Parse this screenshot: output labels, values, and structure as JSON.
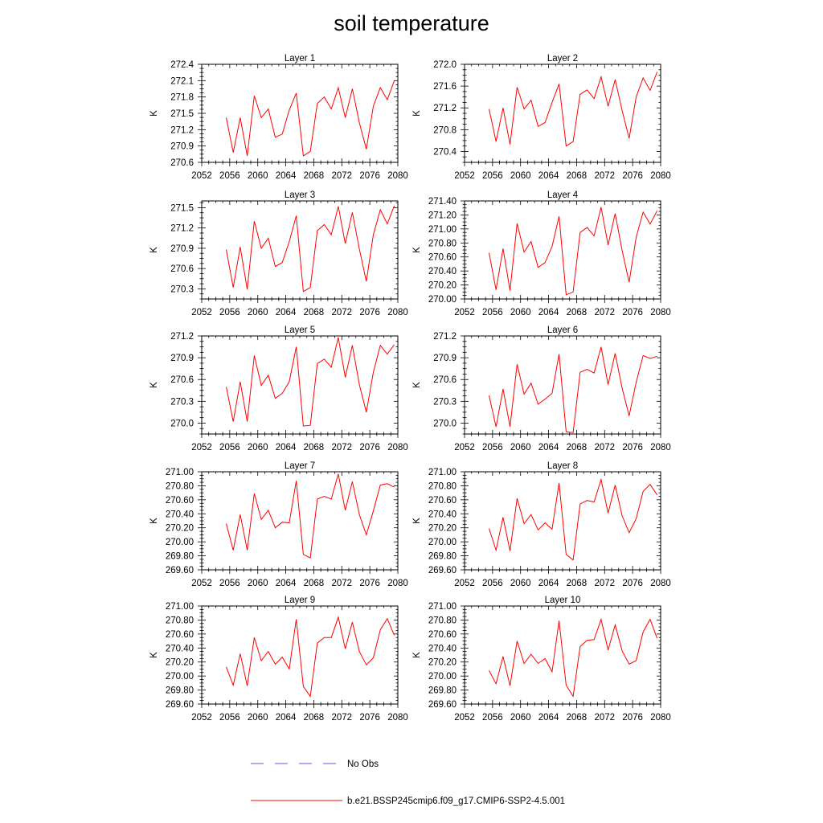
{
  "title": "soil temperature",
  "chart_data": {
    "type": "line",
    "title": "soil temperature",
    "x": [
      2055.5,
      2056.5,
      2057.5,
      2058.5,
      2059.5,
      2060.5,
      2061.5,
      2062.5,
      2063.5,
      2064.5,
      2065.5,
      2066.5,
      2067.5,
      2068.5,
      2069.5,
      2070.5,
      2071.5,
      2072.5,
      2073.5,
      2074.5,
      2075.5,
      2076.5,
      2077.5,
      2078.5,
      2079.5
    ],
    "xlim": [
      2052,
      2080
    ],
    "xticks": [
      "2052",
      "2056",
      "2060",
      "2064",
      "2068",
      "2072",
      "2076",
      "2080"
    ],
    "legend": [
      {
        "label": "No Obs",
        "color": "#5a5aff",
        "style": "dashed"
      },
      {
        "label": "b.e21.BSSP245cmip6.f09_g17.CMIP6-SSP2-4.5.001",
        "color": "#ff0000",
        "style": "solid"
      }
    ],
    "panels": [
      {
        "name": "Layer 1",
        "ylabel": "K",
        "ylim": [
          270.6,
          272.4
        ],
        "yticks": [
          "270.6",
          "270.9",
          "271.2",
          "271.5",
          "271.8",
          "272.1",
          "272.4"
        ],
        "values": [
          271.42,
          270.78,
          271.42,
          270.72,
          271.82,
          271.42,
          271.58,
          271.06,
          271.12,
          271.56,
          271.87,
          270.72,
          270.8,
          271.68,
          271.8,
          271.58,
          271.97,
          271.42,
          271.95,
          271.33,
          270.84,
          271.63,
          271.97,
          271.75,
          272.1
        ]
      },
      {
        "name": "Layer 2",
        "ylabel": "K",
        "ylim": [
          270.2,
          272.0
        ],
        "yticks": [
          "270.4",
          "270.8",
          "271.2",
          "271.6",
          "272.0"
        ],
        "values": [
          271.18,
          270.58,
          271.2,
          270.53,
          271.58,
          271.18,
          271.34,
          270.86,
          270.93,
          271.3,
          271.64,
          270.5,
          270.58,
          271.45,
          271.53,
          271.37,
          271.77,
          271.23,
          271.72,
          271.15,
          270.64,
          271.4,
          271.75,
          271.52,
          271.86
        ]
      },
      {
        "name": "Layer 3",
        "ylabel": "K",
        "ylim": [
          270.15,
          271.6
        ],
        "yticks": [
          "270.3",
          "270.6",
          "270.9",
          "271.2",
          "271.5"
        ],
        "values": [
          270.88,
          270.32,
          270.92,
          270.29,
          271.3,
          270.9,
          271.05,
          270.63,
          270.69,
          271.0,
          271.38,
          270.26,
          270.32,
          271.16,
          271.25,
          271.1,
          271.52,
          270.97,
          271.43,
          270.89,
          270.41,
          271.1,
          271.47,
          271.26,
          271.53
        ]
      },
      {
        "name": "Layer 4",
        "ylabel": "K",
        "ylim": [
          270.0,
          271.4
        ],
        "yticks": [
          "270.00",
          "270.20",
          "270.40",
          "270.60",
          "270.80",
          "271.00",
          "271.20",
          "271.40"
        ],
        "values": [
          270.66,
          270.13,
          270.72,
          270.12,
          271.08,
          270.67,
          270.82,
          270.45,
          270.52,
          270.75,
          271.18,
          270.06,
          270.1,
          270.95,
          271.02,
          270.9,
          271.31,
          270.77,
          271.22,
          270.69,
          270.24,
          270.88,
          271.24,
          271.07,
          271.26
        ]
      },
      {
        "name": "Layer 5",
        "ylabel": "K",
        "ylim": [
          269.85,
          271.2
        ],
        "yticks": [
          "270.0",
          "270.3",
          "270.6",
          "270.9",
          "271.2"
        ],
        "values": [
          270.5,
          270.02,
          270.57,
          270.02,
          270.93,
          270.52,
          270.66,
          270.34,
          270.41,
          270.57,
          271.05,
          269.96,
          269.97,
          270.82,
          270.88,
          270.77,
          271.18,
          270.63,
          271.07,
          270.53,
          270.15,
          270.7,
          271.07,
          270.95,
          271.08
        ]
      },
      {
        "name": "Layer 6",
        "ylabel": "K",
        "ylim": [
          269.85,
          271.2
        ],
        "yticks": [
          "270.0",
          "270.3",
          "270.6",
          "270.9",
          "271.2"
        ],
        "values": [
          270.38,
          269.95,
          270.47,
          269.95,
          270.81,
          270.4,
          270.55,
          270.26,
          270.33,
          270.41,
          270.95,
          269.88,
          269.87,
          270.7,
          270.74,
          270.69,
          271.05,
          270.53,
          270.96,
          270.48,
          270.1,
          270.56,
          270.93,
          270.89,
          270.92
        ]
      },
      {
        "name": "Layer 7",
        "ylabel": "K",
        "ylim": [
          269.6,
          271.0
        ],
        "yticks": [
          "269.60",
          "269.80",
          "270.00",
          "270.20",
          "270.40",
          "270.60",
          "270.80",
          "271.00"
        ],
        "values": [
          270.26,
          269.88,
          270.39,
          269.88,
          270.69,
          270.32,
          270.45,
          270.2,
          270.28,
          270.27,
          270.87,
          269.82,
          269.77,
          270.61,
          270.65,
          270.61,
          270.97,
          270.45,
          270.86,
          270.39,
          270.1,
          270.44,
          270.81,
          270.83,
          270.78
        ]
      },
      {
        "name": "Layer 8",
        "ylabel": "K",
        "ylim": [
          269.6,
          271.0
        ],
        "yticks": [
          "269.60",
          "269.80",
          "270.00",
          "270.20",
          "270.40",
          "270.60",
          "270.80",
          "271.00"
        ],
        "values": [
          270.19,
          269.88,
          270.35,
          269.87,
          270.62,
          270.26,
          270.39,
          270.17,
          270.27,
          270.18,
          270.84,
          269.82,
          269.74,
          270.54,
          270.59,
          270.57,
          270.89,
          270.41,
          270.81,
          270.37,
          270.13,
          270.33,
          270.72,
          270.82,
          270.67
        ]
      },
      {
        "name": "Layer 9",
        "ylabel": "K",
        "ylim": [
          269.6,
          271.0
        ],
        "yticks": [
          "269.60",
          "269.80",
          "270.00",
          "270.20",
          "270.40",
          "270.60",
          "270.80",
          "271.00"
        ],
        "values": [
          270.13,
          269.87,
          270.32,
          269.86,
          270.55,
          270.22,
          270.35,
          270.17,
          270.27,
          270.1,
          270.81,
          269.85,
          269.71,
          270.47,
          270.55,
          270.55,
          270.84,
          270.39,
          270.77,
          270.35,
          270.16,
          270.26,
          270.66,
          270.82,
          270.58
        ]
      },
      {
        "name": "Layer 10",
        "ylabel": "K",
        "ylim": [
          269.6,
          271.0
        ],
        "yticks": [
          "269.60",
          "269.80",
          "270.00",
          "270.20",
          "270.40",
          "270.60",
          "270.80",
          "271.00"
        ],
        "values": [
          270.08,
          269.89,
          270.28,
          269.86,
          270.5,
          270.18,
          270.31,
          270.18,
          270.25,
          270.06,
          270.79,
          269.87,
          269.71,
          270.42,
          270.51,
          270.52,
          270.81,
          270.37,
          270.73,
          270.36,
          270.17,
          270.22,
          270.63,
          270.81,
          270.54
        ]
      }
    ]
  }
}
